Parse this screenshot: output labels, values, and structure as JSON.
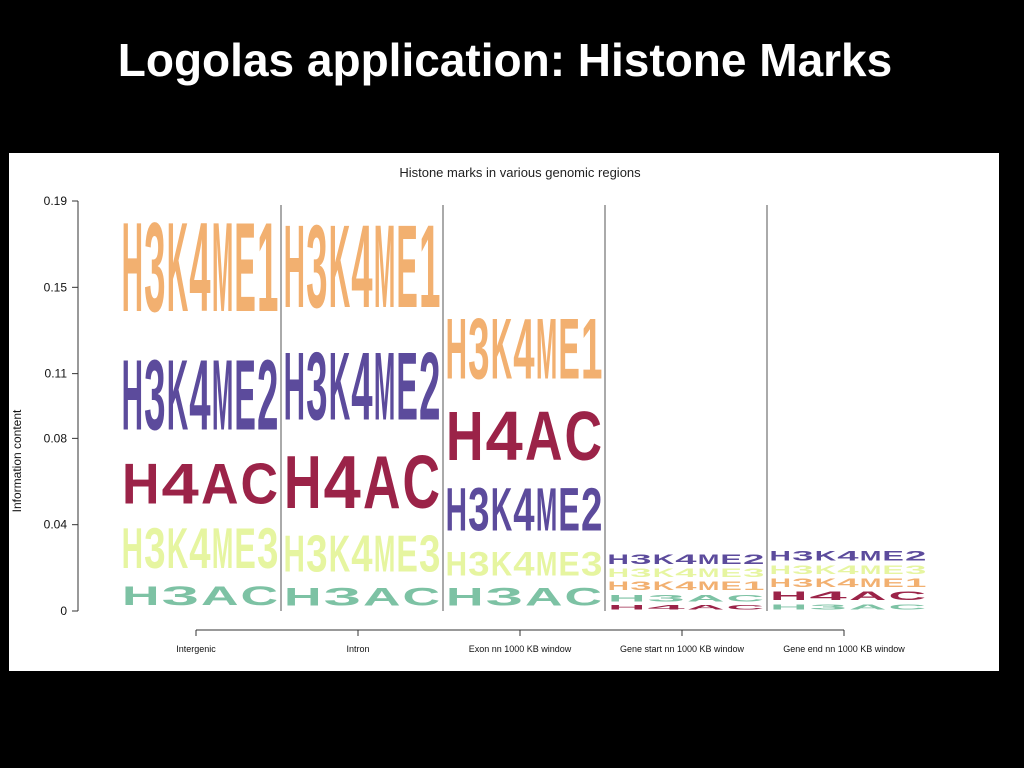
{
  "slide": {
    "title": "Logolas application: Histone Marks"
  },
  "chart_data": {
    "type": "logo",
    "title": "Histone marks in various genomic regions",
    "ylabel": "Information content",
    "xlabel": "",
    "ylim": [
      0,
      0.19
    ],
    "yticks": [
      "0",
      "0.04",
      "0.08",
      "0.11",
      "0.15",
      "0.19"
    ],
    "categories": [
      "Intergenic",
      "Intron",
      "Exon nn 1000 KB window",
      "Gene start nn 1000 KB window",
      "Gene end nn 1000 KB window"
    ],
    "series_colors": {
      "H3AC": "#7dc2a4",
      "H3K4ME3": "#e6f5a0",
      "H4AC": "#9b2348",
      "H3K4ME2": "#5c4b9c",
      "H3K4ME1": "#f2b070"
    },
    "columns": [
      {
        "category": "Intergenic",
        "stack": [
          {
            "mark": "H3AC",
            "label": "H3AC",
            "value": 0.014
          },
          {
            "mark": "H3K4ME3",
            "label": "H3K4ME3",
            "value": 0.03
          },
          {
            "mark": "H4AC",
            "label": "H4AC",
            "value": 0.03
          },
          {
            "mark": "H3K4ME2",
            "label": "H3K4ME2",
            "value": 0.052
          },
          {
            "mark": "H3K4ME1",
            "label": "H3K4ME1",
            "value": 0.066
          }
        ]
      },
      {
        "category": "Intron",
        "stack": [
          {
            "mark": "H3AC",
            "label": "H3AC",
            "value": 0.013
          },
          {
            "mark": "H3K4ME3",
            "label": "H3K4ME3",
            "value": 0.027
          },
          {
            "mark": "H4AC",
            "label": "H4AC",
            "value": 0.039
          },
          {
            "mark": "H3K4ME2",
            "label": "H3K4ME2",
            "value": 0.05
          },
          {
            "mark": "H3K4ME1",
            "label": "H3K4ME1",
            "value": 0.061
          }
        ]
      },
      {
        "category": "Exon nn 1000 KB window",
        "stack": [
          {
            "mark": "H3AC",
            "label": "H3AC",
            "value": 0.013
          },
          {
            "mark": "H3K4ME3",
            "label": "H3K4ME3",
            "value": 0.018
          },
          {
            "mark": "H3K4ME2",
            "label": "H3K4ME2",
            "value": 0.032
          },
          {
            "mark": "H4AC",
            "label": "H4AC",
            "value": 0.036
          },
          {
            "mark": "H3K4ME1",
            "label": "H3K4ME1",
            "value": 0.045
          }
        ]
      },
      {
        "category": "Gene start nn 1000 KB window",
        "stack": [
          {
            "mark": "H4AC",
            "label": "H4AC",
            "value": 0.0035
          },
          {
            "mark": "H3AC",
            "label": "H3AC",
            "value": 0.005
          },
          {
            "mark": "H3K4ME1",
            "label": "H3K4ME1",
            "value": 0.006
          },
          {
            "mark": "H3K4ME3",
            "label": "H3K4ME3",
            "value": 0.006
          },
          {
            "mark": "H3K4ME2",
            "label": "H3K4ME2",
            "value": 0.007
          }
        ]
      },
      {
        "category": "Gene end nn 1000 KB window",
        "stack": [
          {
            "mark": "H3AC",
            "label": "H3AC",
            "value": 0.004
          },
          {
            "mark": "H4AC",
            "label": "H4AC",
            "value": 0.006
          },
          {
            "mark": "H3K4ME1",
            "label": "H3K4ME1",
            "value": 0.006
          },
          {
            "mark": "H3K4ME3",
            "label": "H3K4ME3",
            "value": 0.006
          },
          {
            "mark": "H3K4ME2",
            "label": "H3K4ME2",
            "value": 0.007
          }
        ]
      }
    ]
  }
}
